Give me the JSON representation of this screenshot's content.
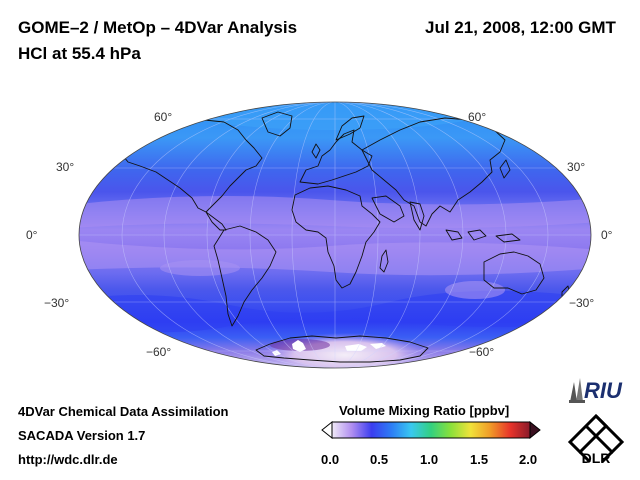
{
  "header": {
    "title_line1": "GOME–2 / MetOp – 4DVar Analysis",
    "title_line2": "HCl at 55.4 hPa",
    "datetime": "Jul 21, 2008, 12:00 GMT"
  },
  "map": {
    "projection": "Mollweide",
    "field": "HCl volume mixing ratio",
    "lat_labels_left": [
      "60°",
      "30°",
      "0°",
      "−30°",
      "−60°"
    ],
    "lat_labels_right": [
      "60°",
      "30°",
      "0°",
      "−30°",
      "−60°"
    ]
  },
  "colorbar": {
    "title": "Volume Mixing Ratio [ppbv]",
    "ticks": [
      "0.0",
      "0.5",
      "1.0",
      "1.5",
      "2.0"
    ],
    "range": [
      0.0,
      2.0
    ]
  },
  "footer": {
    "line1": "4DVar Chemical Data Assimilation",
    "line2": "SACADA Version 1.7",
    "line3": "http://wdc.dlr.de"
  },
  "logos": {
    "riu": "RIU",
    "dlr": "DLR"
  },
  "colors": {
    "ocean_fill": "#3d5cf0",
    "band_light": "#9a7df0",
    "north_cap": "#2f8ef5",
    "coast": "#111111"
  }
}
